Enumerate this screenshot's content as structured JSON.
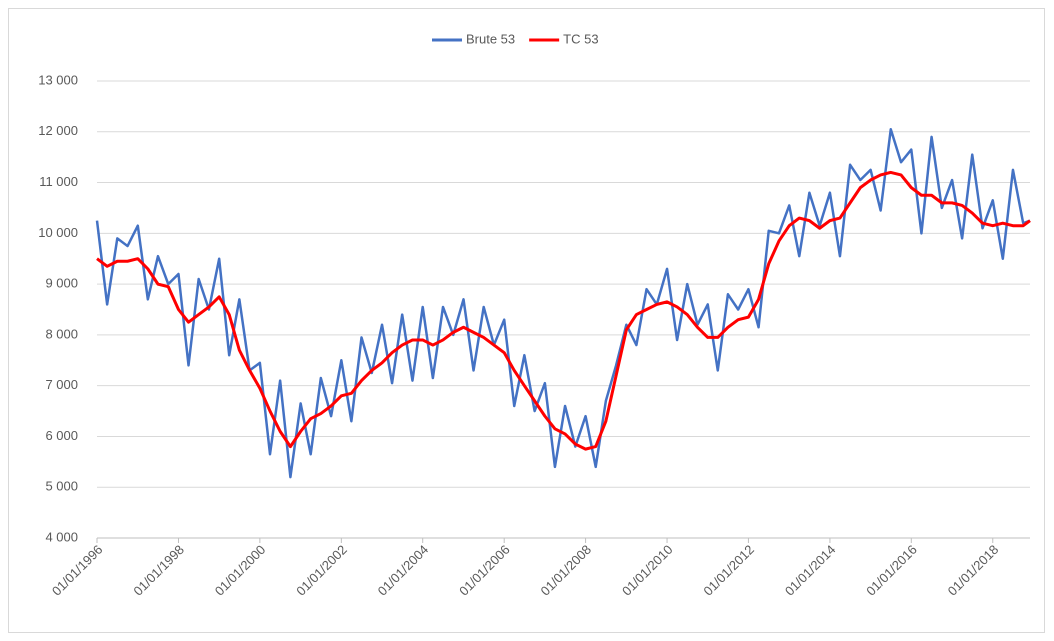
{
  "chart_data": {
    "type": "line",
    "x": [
      "1996-01-01",
      "1996-04-01",
      "1996-07-01",
      "1996-10-01",
      "1997-01-01",
      "1997-04-01",
      "1997-07-01",
      "1997-10-01",
      "1998-01-01",
      "1998-04-01",
      "1998-07-01",
      "1998-10-01",
      "1999-01-01",
      "1999-04-01",
      "1999-07-01",
      "1999-10-01",
      "2000-01-01",
      "2000-04-01",
      "2000-07-01",
      "2000-10-01",
      "2001-01-01",
      "2001-04-01",
      "2001-07-01",
      "2001-10-01",
      "2002-01-01",
      "2002-04-01",
      "2002-07-01",
      "2002-10-01",
      "2003-01-01",
      "2003-04-01",
      "2003-07-01",
      "2003-10-01",
      "2004-01-01",
      "2004-04-01",
      "2004-07-01",
      "2004-10-01",
      "2005-01-01",
      "2005-04-01",
      "2005-07-01",
      "2005-10-01",
      "2006-01-01",
      "2006-04-01",
      "2006-07-01",
      "2006-10-01",
      "2007-01-01",
      "2007-04-01",
      "2007-07-01",
      "2007-10-01",
      "2008-01-01",
      "2008-04-01",
      "2008-07-01",
      "2008-10-01",
      "2009-01-01",
      "2009-04-01",
      "2009-07-01",
      "2009-10-01",
      "2010-01-01",
      "2010-04-01",
      "2010-07-01",
      "2010-10-01",
      "2011-01-01",
      "2011-04-01",
      "2011-07-01",
      "2011-10-01",
      "2012-01-01",
      "2012-04-01",
      "2012-07-01",
      "2012-10-01",
      "2013-01-01",
      "2013-04-01",
      "2013-07-01",
      "2013-10-01",
      "2014-01-01",
      "2014-04-01",
      "2014-07-01",
      "2014-10-01",
      "2015-01-01",
      "2015-04-01",
      "2015-07-01",
      "2015-10-01",
      "2016-01-01",
      "2016-04-01",
      "2016-07-01",
      "2016-10-01",
      "2017-01-01",
      "2017-04-01",
      "2017-07-01",
      "2017-10-01",
      "2018-01-01",
      "2018-04-01",
      "2018-07-01",
      "2018-10-01",
      "2018-12-01"
    ],
    "series": [
      {
        "name": "Brute 53",
        "color": "#4472c4",
        "values": [
          10250,
          8600,
          9900,
          9750,
          10150,
          8700,
          9550,
          9000,
          9200,
          7400,
          9100,
          8500,
          9500,
          7600,
          8700,
          7300,
          7450,
          5650,
          7100,
          5200,
          6650,
          5650,
          7150,
          6400,
          7500,
          6300,
          7950,
          7250,
          8200,
          7050,
          8400,
          7100,
          8550,
          7150,
          8550,
          8000,
          8700,
          7300,
          8550,
          7800,
          8300,
          6600,
          7600,
          6500,
          7050,
          5400,
          6600,
          5800,
          6400,
          5400,
          6700,
          7400,
          8200,
          7800,
          8900,
          8600,
          9300,
          7900,
          9000,
          8200,
          8600,
          7300,
          8800,
          8500,
          8900,
          8150,
          10050,
          10000,
          10550,
          9550,
          10800,
          10150,
          10800,
          9550,
          11350,
          11050,
          11250,
          10450,
          12050,
          11400,
          11650,
          10000,
          11900,
          10500,
          11050,
          9900,
          11550,
          10100,
          10650,
          9500,
          11250,
          10200,
          10250
        ]
      },
      {
        "name": "TC 53",
        "color": "#ff0000",
        "values": [
          9500,
          9350,
          9450,
          9450,
          9500,
          9300,
          9000,
          8950,
          8500,
          8250,
          8400,
          8550,
          8750,
          8400,
          7700,
          7300,
          6950,
          6500,
          6100,
          5800,
          6100,
          6350,
          6450,
          6600,
          6800,
          6850,
          7100,
          7300,
          7450,
          7650,
          7800,
          7900,
          7900,
          7800,
          7900,
          8050,
          8150,
          8050,
          7950,
          7800,
          7650,
          7300,
          7000,
          6700,
          6400,
          6150,
          6050,
          5850,
          5750,
          5800,
          6300,
          7200,
          8100,
          8400,
          8500,
          8600,
          8650,
          8550,
          8400,
          8150,
          7950,
          7950,
          8150,
          8300,
          8350,
          8700,
          9400,
          9850,
          10150,
          10300,
          10250,
          10100,
          10250,
          10300,
          10600,
          10900,
          11050,
          11150,
          11200,
          11150,
          10900,
          10750,
          10750,
          10600,
          10600,
          10550,
          10400,
          10200,
          10150,
          10200,
          10150,
          10150,
          10250
        ]
      }
    ],
    "xlim": [
      "1996-01-01",
      "2018-12-01"
    ],
    "xticks": [
      {
        "value": "1996-01-01",
        "label": "01/01/1996"
      },
      {
        "value": "1998-01-01",
        "label": "01/01/1998"
      },
      {
        "value": "2000-01-01",
        "label": "01/01/2000"
      },
      {
        "value": "2002-01-01",
        "label": "01/01/2002"
      },
      {
        "value": "2004-01-01",
        "label": "01/01/2004"
      },
      {
        "value": "2006-01-01",
        "label": "01/01/2006"
      },
      {
        "value": "2008-01-01",
        "label": "01/01/2008"
      },
      {
        "value": "2010-01-01",
        "label": "01/01/2010"
      },
      {
        "value": "2012-01-01",
        "label": "01/01/2012"
      },
      {
        "value": "2014-01-01",
        "label": "01/01/2014"
      },
      {
        "value": "2016-01-01",
        "label": "01/01/2016"
      },
      {
        "value": "2018-01-01",
        "label": "01/01/2018"
      }
    ],
    "ylim": [
      4000,
      13000
    ],
    "yticks": [
      {
        "value": 4000,
        "label": "4 000"
      },
      {
        "value": 5000,
        "label": "5 000"
      },
      {
        "value": 6000,
        "label": "6 000"
      },
      {
        "value": 7000,
        "label": "7 000"
      },
      {
        "value": 8000,
        "label": "8 000"
      },
      {
        "value": 9000,
        "label": "9 000"
      },
      {
        "value": 10000,
        "label": "10 000"
      },
      {
        "value": 11000,
        "label": "11 000"
      },
      {
        "value": 12000,
        "label": "12 000"
      },
      {
        "value": 13000,
        "label": "13 000"
      }
    ],
    "grid": true,
    "legend": "top"
  }
}
